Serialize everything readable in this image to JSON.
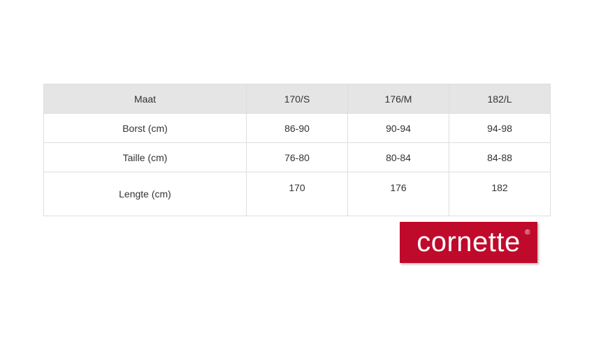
{
  "table": {
    "header": [
      "Maat",
      "170/S",
      "176/M",
      "182/L"
    ],
    "rows": [
      [
        "Borst (cm)",
        "86-90",
        "90-94",
        "94-98"
      ],
      [
        "Taille (cm)",
        "76-80",
        "80-84",
        "84-88"
      ],
      [
        "Lengte (cm)",
        "170",
        "176",
        "182"
      ]
    ]
  },
  "logo": {
    "text": "cornette",
    "mark": "®",
    "color": "#c00a2c"
  }
}
